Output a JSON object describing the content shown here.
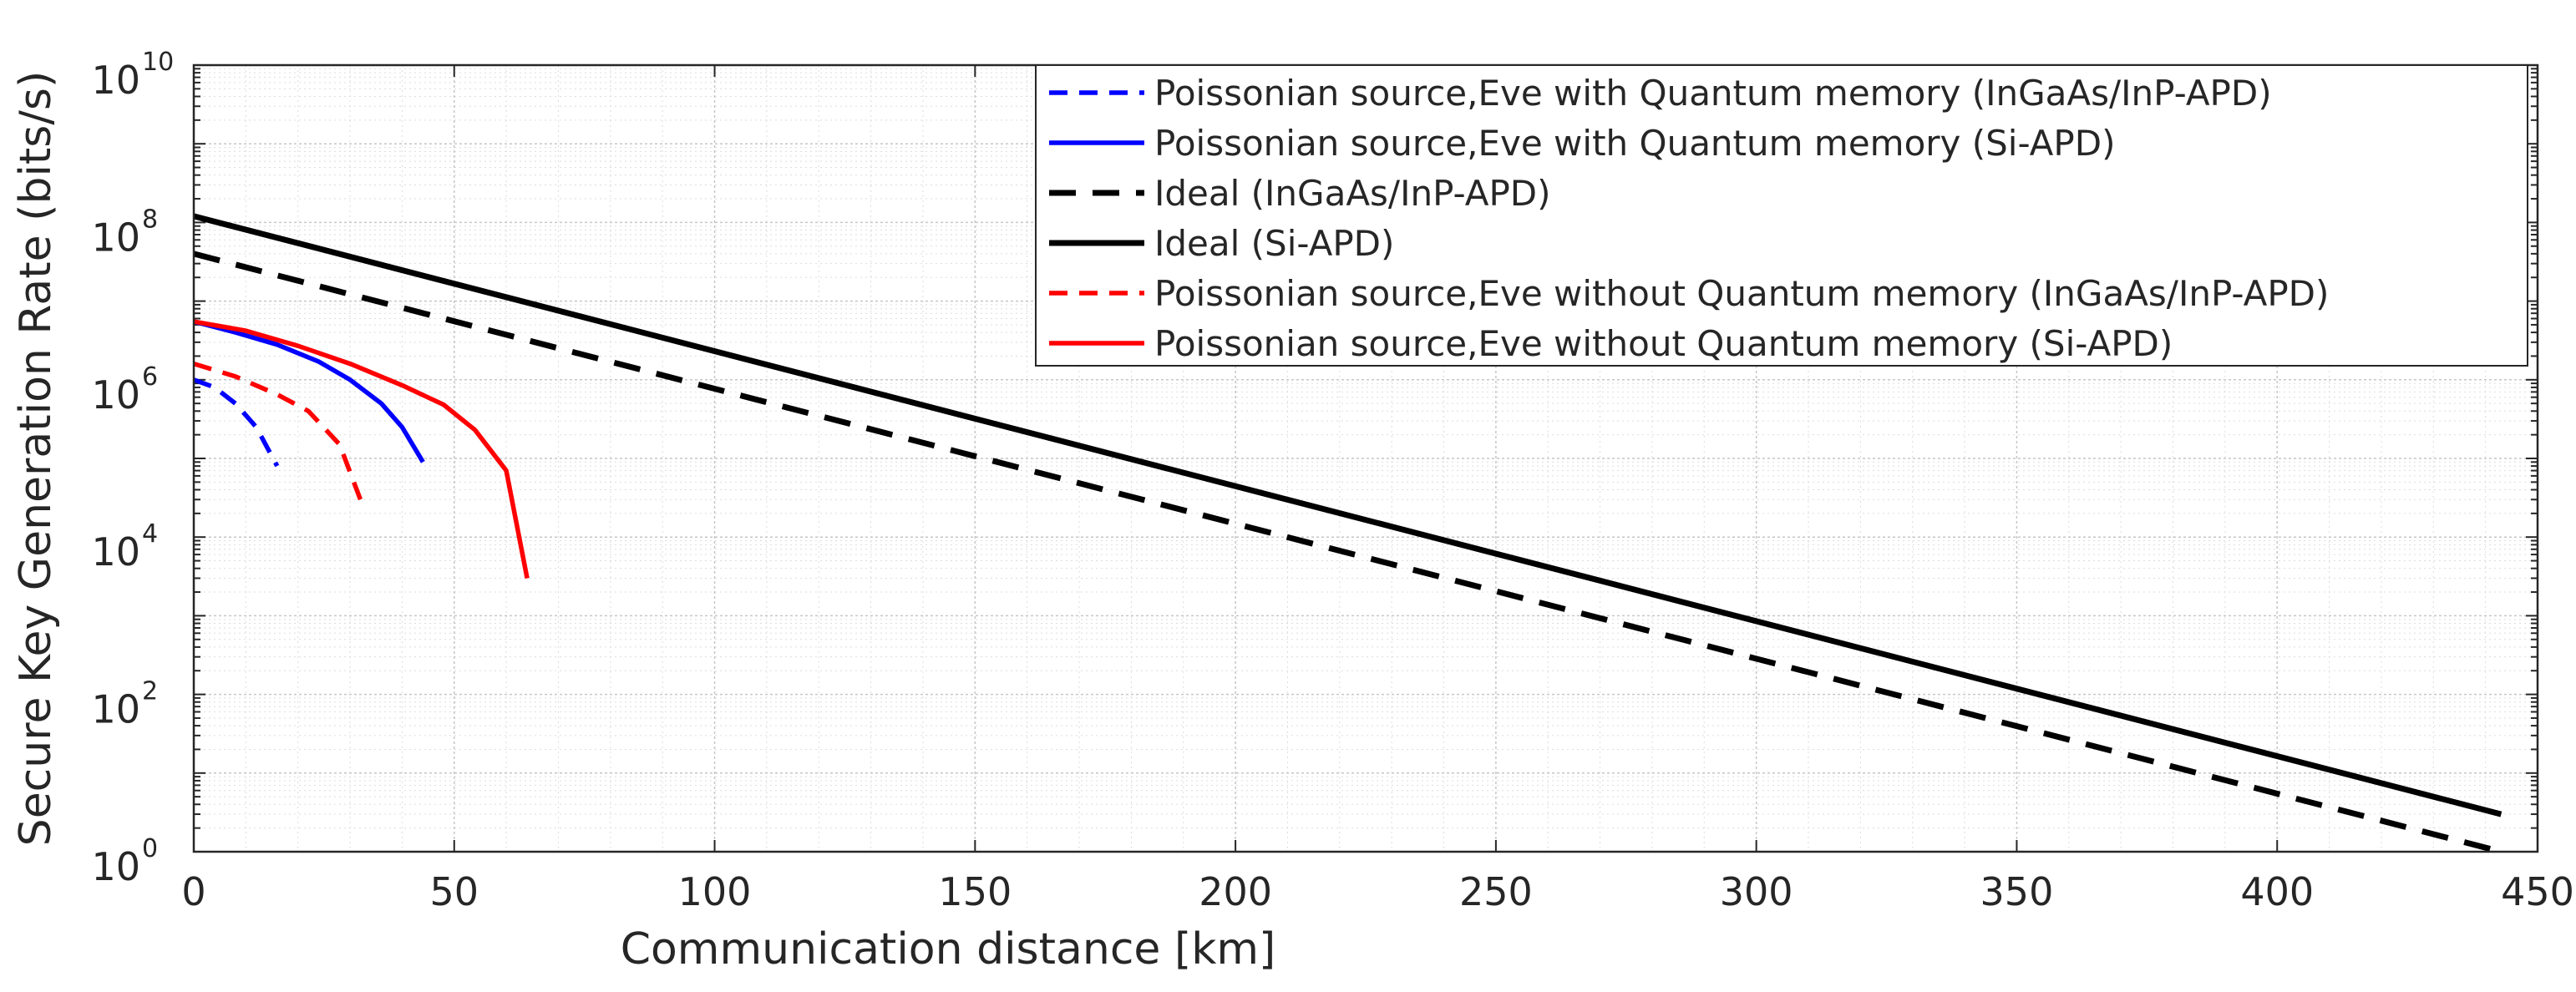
{
  "chart_data": {
    "type": "line",
    "xlabel": "Communication distance [km]",
    "ylabel": "Secure Key Generation Rate (bits/s)",
    "xlim": [
      0,
      450
    ],
    "ylim": [
      1,
      10000000000
    ],
    "yscale": "log",
    "grid": true,
    "minor_grid": true,
    "legend_position": "top-right",
    "x_ticks": [
      "0",
      "50",
      "100",
      "150",
      "200",
      "250",
      "300",
      "350",
      "400",
      "450"
    ],
    "y_ticks": [
      {
        "base": "10",
        "exp": "0"
      },
      {
        "base": "10",
        "exp": "2"
      },
      {
        "base": "10",
        "exp": "4"
      },
      {
        "base": "10",
        "exp": "6"
      },
      {
        "base": "10",
        "exp": "8"
      },
      {
        "base": "10",
        "exp": "10"
      }
    ],
    "series": [
      {
        "name": "Poissonian source,Eve with Quantum memory (InGaAs/InP-APD)",
        "color": "#0000ff",
        "style": "dashed",
        "x": [
          0,
          4,
          8,
          12,
          16
        ],
        "y": [
          1000000,
          800000,
          500000,
          250000,
          80000
        ]
      },
      {
        "name": "Poissonian source,Eve with Quantum memory (Si-APD)",
        "color": "#0000ff",
        "style": "solid",
        "x": [
          0,
          8,
          16,
          24,
          30,
          36,
          40,
          44
        ],
        "y": [
          5500000,
          4000000,
          2800000,
          1700000,
          1000000,
          500000,
          250000,
          90000
        ]
      },
      {
        "name": "Ideal (InGaAs/InP-APD)",
        "color": "#000000",
        "style": "dashed",
        "x": [
          0,
          443
        ],
        "y": [
          40000000,
          1
        ]
      },
      {
        "name": "Ideal (Si-APD)",
        "color": "#000000",
        "style": "solid",
        "x": [
          0,
          443
        ],
        "y": [
          120000000,
          3
        ]
      },
      {
        "name": "Poissonian source,Eve without Quantum memory (InGaAs/InP-APD)",
        "color": "#ff0000",
        "style": "dashed",
        "x": [
          0,
          8,
          16,
          22,
          28,
          32
        ],
        "y": [
          1600000,
          1100000,
          650000,
          400000,
          150000,
          30000
        ]
      },
      {
        "name": "Poissonian source,Eve without Quantum memory (Si-APD)",
        "color": "#ff0000",
        "style": "solid",
        "x": [
          0,
          10,
          20,
          30,
          40,
          48,
          54,
          60,
          64
        ],
        "y": [
          5500000,
          4200000,
          2700000,
          1600000,
          850000,
          480000,
          230000,
          70000,
          3000
        ]
      }
    ]
  }
}
